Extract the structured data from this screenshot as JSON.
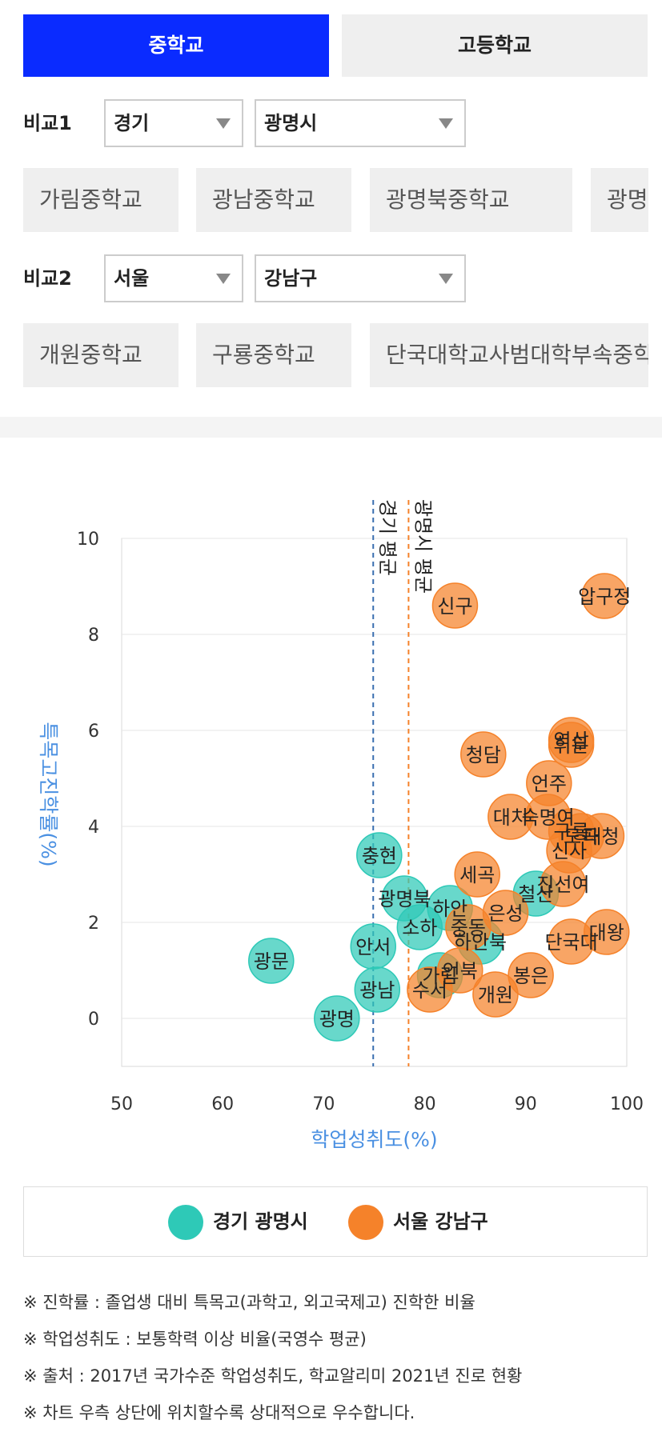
{
  "tabs": {
    "middle": "중학교",
    "high": "고등학교"
  },
  "compare1": {
    "label": "비교1",
    "region": "경기",
    "district": "광명시",
    "schools": [
      "가림중학교",
      "광남중학교",
      "광명북중학교",
      "광명중학교"
    ]
  },
  "compare2": {
    "label": "비교2",
    "region": "서울",
    "district": "강남구",
    "schools": [
      "개원중학교",
      "구룡중학교",
      "단국대학교사범대학부속중학교"
    ]
  },
  "colors": {
    "accent": "#0a2bff",
    "series1": "#2ec9b7",
    "series2": "#f5822a",
    "axis_title": "#4a90e2"
  },
  "chart_data": {
    "type": "scatter",
    "xlabel": "학업성취도(%)",
    "ylabel": "특목고진학률(%)",
    "xlim": [
      50,
      100
    ],
    "ylim": [
      -1,
      10
    ],
    "xticks": [
      "50",
      "60",
      "70",
      "80",
      "90",
      "100"
    ],
    "yticks": [
      "0",
      "2",
      "4",
      "6",
      "8",
      "10"
    ],
    "grid": true,
    "reference_lines": [
      {
        "label": "경기 평균",
        "x": 74.9,
        "color": "#3a6fb0"
      },
      {
        "label": "광명시 평균",
        "x": 78.4,
        "color": "#f5822a"
      }
    ],
    "series": [
      {
        "name": "경기 광명시",
        "color": "#2ec9b7",
        "points": [
          {
            "label": "광문",
            "x": 64.8,
            "y": 1.2
          },
          {
            "label": "광명",
            "x": 71.3,
            "y": 0.0
          },
          {
            "label": "광남",
            "x": 75.3,
            "y": 0.6
          },
          {
            "label": "안서",
            "x": 74.9,
            "y": 1.5
          },
          {
            "label": "충현",
            "x": 75.5,
            "y": 3.4
          },
          {
            "label": "광명북",
            "x": 78.0,
            "y": 2.5
          },
          {
            "label": "소하",
            "x": 79.5,
            "y": 1.9
          },
          {
            "label": "하안",
            "x": 82.5,
            "y": 2.3
          },
          {
            "label": "하안북",
            "x": 85.5,
            "y": 1.6
          },
          {
            "label": "가림",
            "x": 81.5,
            "y": 0.9
          },
          {
            "label": "철산",
            "x": 91.0,
            "y": 2.6
          }
        ]
      },
      {
        "name": "서울 강남구",
        "color": "#f5822a",
        "points": [
          {
            "label": "신구",
            "x": 83.0,
            "y": 8.6
          },
          {
            "label": "압구정",
            "x": 97.8,
            "y": 8.8
          },
          {
            "label": "역삼",
            "x": 94.5,
            "y": 5.8
          },
          {
            "label": "휘문",
            "x": 94.5,
            "y": 5.7
          },
          {
            "label": "청담",
            "x": 85.8,
            "y": 5.5
          },
          {
            "label": "언주",
            "x": 92.3,
            "y": 4.9
          },
          {
            "label": "대치",
            "x": 88.5,
            "y": 4.2
          },
          {
            "label": "숙명여",
            "x": 92.2,
            "y": 4.2
          },
          {
            "label": "대청",
            "x": 97.5,
            "y": 3.8
          },
          {
            "label": "도곡",
            "x": 95.5,
            "y": 3.8
          },
          {
            "label": "구룡",
            "x": 94.5,
            "y": 3.9
          },
          {
            "label": "신사",
            "x": 94.3,
            "y": 3.5
          },
          {
            "label": "진선여",
            "x": 93.7,
            "y": 2.8
          },
          {
            "label": "세곡",
            "x": 85.2,
            "y": 3.0
          },
          {
            "label": "중동",
            "x": 84.3,
            "y": 1.9
          },
          {
            "label": "은성",
            "x": 88.0,
            "y": 2.2
          },
          {
            "label": "단국대",
            "x": 94.5,
            "y": 1.6
          },
          {
            "label": "대왕",
            "x": 98.0,
            "y": 1.8
          },
          {
            "label": "봉은",
            "x": 90.5,
            "y": 0.9
          },
          {
            "label": "언북",
            "x": 83.5,
            "y": 1.0
          },
          {
            "label": "수서",
            "x": 80.5,
            "y": 0.6
          },
          {
            "label": "개원",
            "x": 87.0,
            "y": 0.5
          }
        ]
      }
    ]
  },
  "notes": [
    "※ 진학률 : 졸업생 대비 특목고(과학고, 외고국제고) 진학한 비율",
    "※ 학업성취도 : 보통학력 이상 비율(국영수 평균)",
    "※ 출처 : 2017년 국가수준 학업성취도, 학교알리미 2021년 진로 현황",
    "※ 차트 우측 상단에 위치할수록 상대적으로 우수합니다."
  ]
}
